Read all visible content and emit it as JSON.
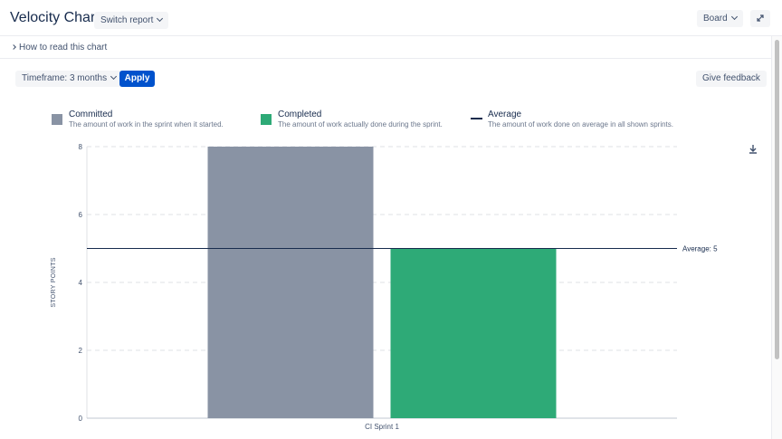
{
  "header": {
    "title": "Velocity Chart",
    "switch_report_label": "Switch report",
    "board_label": "Board",
    "expand_icon": "expand-icon"
  },
  "howto": {
    "label": "How to read this chart"
  },
  "toolbar": {
    "timeframe_label": "Timeframe: 3 months",
    "apply_label": "Apply",
    "feedback_label": "Give feedback"
  },
  "legend": [
    {
      "name": "Committed",
      "desc": "The amount of work in the sprint when it started.",
      "color": "#8993a4",
      "kind": "box"
    },
    {
      "name": "Completed",
      "desc": "The amount of work actually done during the sprint.",
      "color": "#2eaa77",
      "kind": "box"
    },
    {
      "name": "Average",
      "desc": "The amount of work done on average in all shown sprints.",
      "color": "#172b4d",
      "kind": "line"
    }
  ],
  "chart_data": {
    "type": "bar",
    "categories": [
      "CI Sprint 1"
    ],
    "series": [
      {
        "name": "Committed",
        "values": [
          8
        ],
        "color": "#8993a4"
      },
      {
        "name": "Completed",
        "values": [
          5
        ],
        "color": "#2eaa77"
      }
    ],
    "average": {
      "value": 5,
      "label": "Average: 5"
    },
    "ylabel": "STORY POINTS",
    "ylim": [
      0,
      8
    ],
    "yticks": [
      0,
      2,
      4,
      6,
      8
    ],
    "grid": true
  }
}
